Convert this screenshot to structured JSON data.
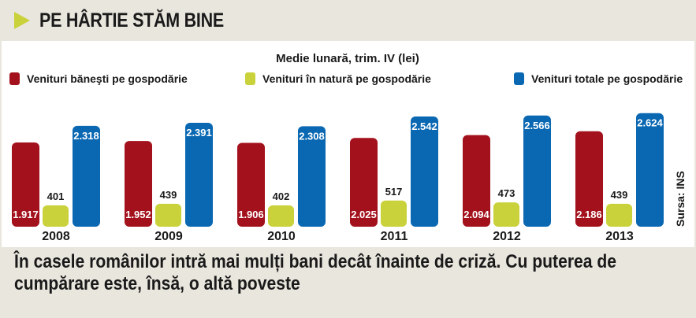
{
  "header": {
    "title": "PE HÂRTIE STĂM BINE"
  },
  "chart_data": {
    "type": "bar",
    "title": "Medie lunară, trim. IV (lei)",
    "categories": [
      "2008",
      "2009",
      "2010",
      "2011",
      "2012",
      "2013"
    ],
    "series": [
      {
        "name": "Venituri băneşti pe gospodărie",
        "color": "#a3111c",
        "values": [
          1917,
          1952,
          1906,
          2025,
          2094,
          2186
        ],
        "labels": [
          "1.917",
          "1.952",
          "1.906",
          "2.025",
          "2.094",
          "2.186"
        ]
      },
      {
        "name": "Venituri în natură pe gospodărie",
        "color": "#c9d23a",
        "values": [
          401,
          439,
          402,
          517,
          473,
          439
        ],
        "labels": [
          "401",
          "439",
          "402",
          "517",
          "473",
          "439"
        ]
      },
      {
        "name": "Venituri totale pe gospodărie",
        "color": "#0a68b3",
        "values": [
          2318,
          2391,
          2308,
          2542,
          2566,
          2624
        ],
        "labels": [
          "2.318",
          "2.391",
          "2.308",
          "2.542",
          "2.566",
          "2.624"
        ]
      }
    ],
    "legend_position": "top",
    "grid": false,
    "source": "Sursa: INS"
  },
  "caption": "În casele românilor intră mai mulți bani decât înainte de criză. Cu puterea de cumpărare este, însă, o altă poveste"
}
